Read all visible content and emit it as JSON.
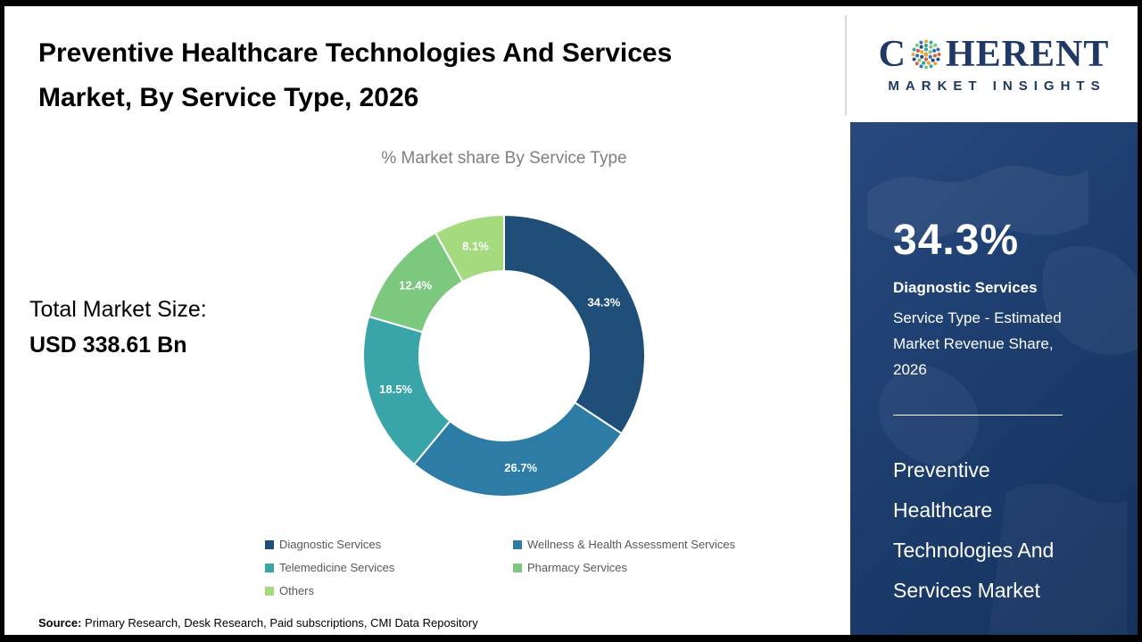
{
  "header": {
    "title_lines": [
      "Preventive Healthcare Technologies And Services",
      "Market, By Service Type, 2026"
    ]
  },
  "logo": {
    "prefix": "C",
    "suffix": "HERENT",
    "subtext": "MARKET INSIGHTS",
    "color": "#1f3864",
    "globe_colors": [
      "#e8a33d",
      "#2fa8a5",
      "#7cc47f",
      "#2e75b6",
      "#d9603b",
      "#1f4e79"
    ]
  },
  "chart_data": {
    "type": "pie",
    "title": "% Market share By Service Type",
    "categories": [
      "Diagnostic Services",
      "Wellness & Health Assessment Services",
      "Telemedicine Services",
      "Pharmacy Services",
      "Others"
    ],
    "values": [
      34.3,
      26.7,
      18.5,
      12.4,
      8.1
    ],
    "colors": [
      "#1f4e79",
      "#2d7ca6",
      "#3aa5a9",
      "#7dc87f",
      "#a5da7f"
    ],
    "donut": true,
    "start_angle_deg": 0,
    "label_format": "percent",
    "legend_position": "bottom"
  },
  "total": {
    "label": "Total Market Size:",
    "value": "USD 338.61 Bn"
  },
  "side_panel": {
    "value": "34.3%",
    "title": "Diagnostic Services",
    "desc_lines": [
      "Service Type - Estimated",
      "Market Revenue Share,",
      "2026"
    ],
    "market_name_lines": [
      "Preventive",
      "Healthcare",
      "Technologies And",
      "Services Market"
    ],
    "bg_color": "#1d3e6f"
  },
  "source": {
    "label": "Source:",
    "text": " Primary Research, Desk Research, Paid subscriptions, CMI Data Repository"
  }
}
